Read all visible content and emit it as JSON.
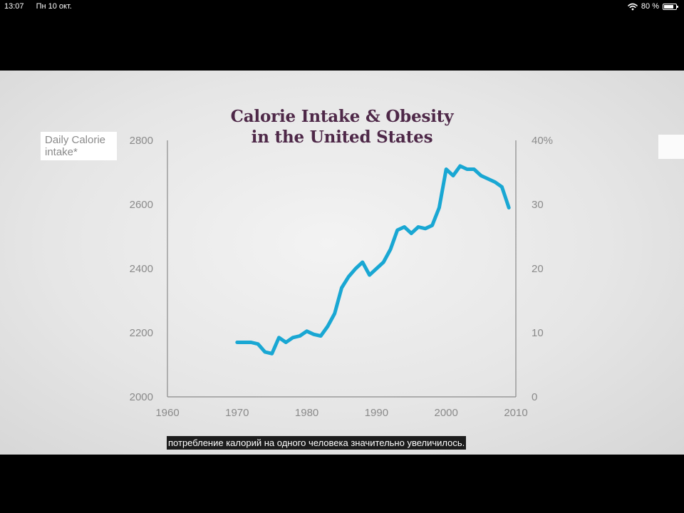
{
  "status_bar": {
    "time": "13:07",
    "date": "Пн 10 окт.",
    "battery": "80 %",
    "battery_level": 0.8,
    "icons": [
      "wifi-icon",
      "battery-icon"
    ]
  },
  "subtitle": "потребление калорий на одного человека значительно увеличилось.",
  "colors": {
    "line": "#19a7d3",
    "title": "#4e2848",
    "axis": "#8a8a8a"
  },
  "chart_data": {
    "type": "line",
    "title": "Calorie Intake & Obesity in the United States",
    "title_lines": [
      "Calorie Intake & Obesity",
      "in the United States"
    ],
    "ylabel": "Daily Calorie intake*",
    "ylabel_lines": [
      "Daily Calorie",
      "intake*"
    ],
    "xlim": [
      1960,
      2010
    ],
    "ylim": [
      2000,
      2800
    ],
    "y2lim": [
      0,
      40
    ],
    "x_ticks": [
      "1960",
      "1970",
      "1980",
      "1990",
      "2000",
      "2010"
    ],
    "y_ticks": [
      "2000",
      "2200",
      "2400",
      "2600",
      "2800"
    ],
    "y2_ticks": [
      "0",
      "10",
      "20",
      "30",
      "40%"
    ],
    "grid": false,
    "series": [
      {
        "x": [
          1970,
          1971,
          1972,
          1973,
          1974,
          1975,
          1976,
          1977,
          1978,
          1979,
          1980,
          1981,
          1982,
          1983,
          1984,
          1985,
          1986,
          1987,
          1988,
          1989,
          1990,
          1991,
          1992,
          1993,
          1994,
          1995,
          1996,
          1997,
          1998,
          1999,
          2000,
          2001,
          2002,
          2003,
          2004,
          2005,
          2006,
          2007,
          2008,
          2009
        ],
        "values": [
          2170,
          2170,
          2170,
          2165,
          2140,
          2135,
          2185,
          2170,
          2185,
          2190,
          2205,
          2195,
          2190,
          2220,
          2260,
          2340,
          2375,
          2400,
          2420,
          2380,
          2400,
          2420,
          2460,
          2520,
          2530,
          2510,
          2530,
          2525,
          2535,
          2590,
          2710,
          2690,
          2720,
          2710,
          2710,
          2690,
          2680,
          2670,
          2655,
          2590
        ]
      }
    ]
  }
}
